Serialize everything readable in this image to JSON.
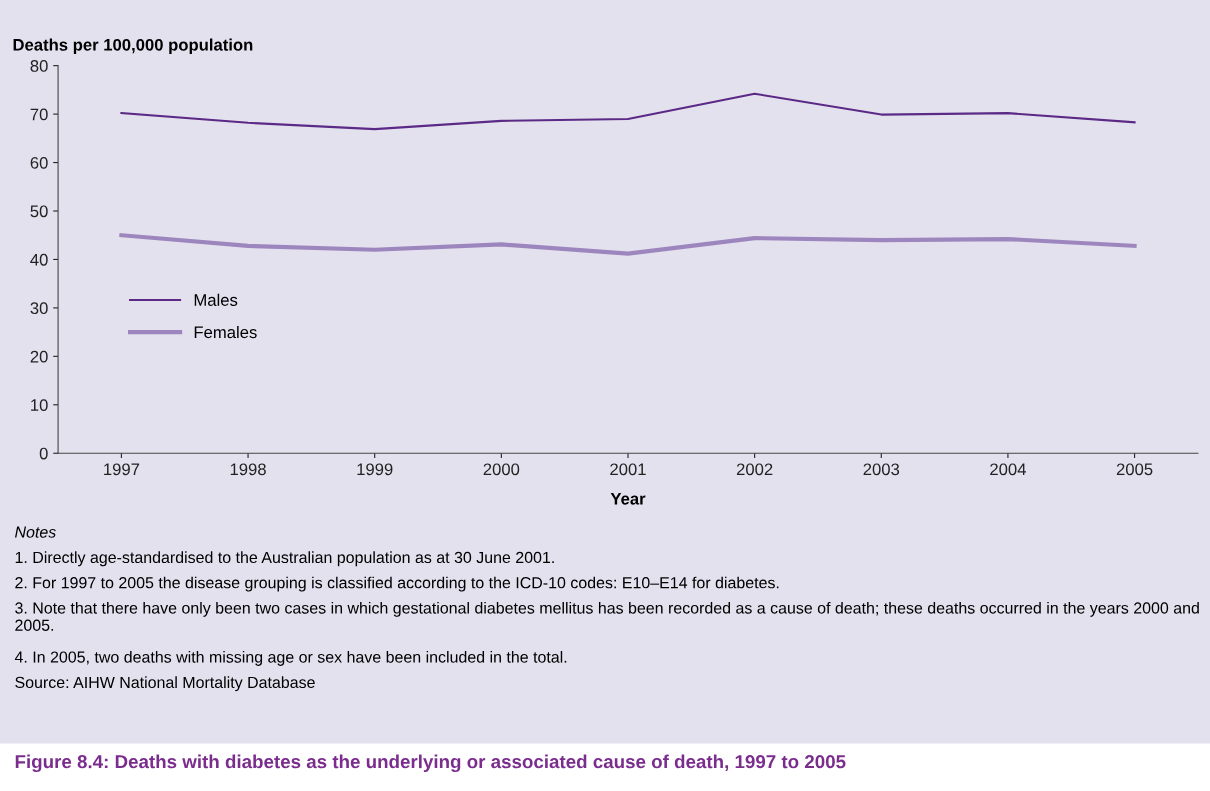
{
  "chart_data": {
    "type": "line",
    "title": "Figure 8.4: Deaths with diabetes as the underlying or associated cause of death, 1997 to 2005",
    "ylabel": "Deaths per 100,000 population",
    "xlabel": "Year",
    "categories": [
      "1997",
      "1998",
      "1999",
      "2000",
      "2001",
      "2002",
      "2003",
      "2004",
      "2005"
    ],
    "series": [
      {
        "name": "Males",
        "color": "#5b2a86",
        "values": [
          70.2,
          68.2,
          66.9,
          68.6,
          69.0,
          74.2,
          69.9,
          70.2,
          68.3
        ]
      },
      {
        "name": "Females",
        "color": "#9d86bd",
        "values": [
          45.0,
          42.8,
          42.0,
          43.1,
          41.2,
          44.4,
          44.0,
          44.2,
          42.8
        ]
      }
    ],
    "ylim": [
      0,
      80
    ],
    "yticks": [
      0,
      10,
      20,
      30,
      40,
      50,
      60,
      70,
      80
    ],
    "grid": false,
    "legend": "left",
    "marker": "none",
    "line_style": "solid",
    "annotations": [
      "Notes",
      "1. Directly age-standardised to the Australian population as at 30 June 2001.",
      "2. For 1997 to 2005 the disease grouping is classified according to the ICD-10 codes: E10–E14 for diabetes.",
      "3. Note that there have only been two cases in which gestational diabetes mellitus has been recorded as a cause of death; these deaths occurred in the years 2000 and 2005.",
      "4. In 2005, two deaths with missing age or sex have been included in the total.",
      "Source: AIHW National Mortality Database"
    ]
  }
}
